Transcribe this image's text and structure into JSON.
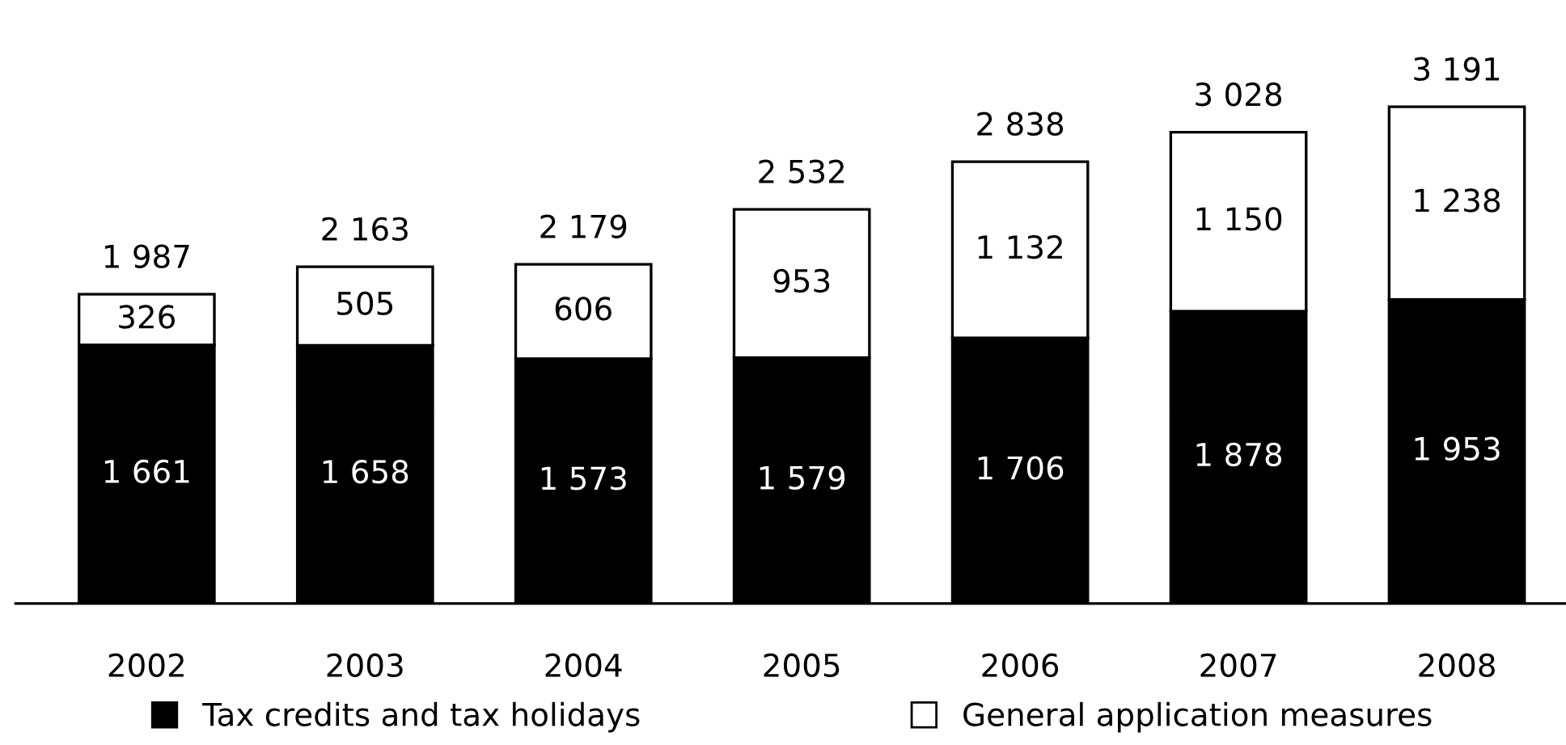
{
  "chart_data": {
    "type": "bar",
    "stacked": true,
    "categories": [
      "2002",
      "2003",
      "2004",
      "2005",
      "2006",
      "2007",
      "2008"
    ],
    "series": [
      {
        "name": "Tax credits and tax holidays",
        "color": "#000000",
        "values": [
          1661,
          1658,
          1573,
          1579,
          1706,
          1878,
          1953
        ],
        "value_labels": [
          "1 661",
          "1 658",
          "1 573",
          "1 579",
          "1 706",
          "1 878",
          "1 953"
        ]
      },
      {
        "name": "General application measures",
        "color": "#ffffff",
        "values": [
          326,
          505,
          606,
          953,
          1132,
          1150,
          1238
        ],
        "value_labels": [
          "326",
          "505",
          "606",
          "953",
          "1 132",
          "1 150",
          "1 238"
        ]
      }
    ],
    "totals": [
      "1 987",
      "2 163",
      "2 179",
      "2 532",
      "2 838",
      "3 028",
      "3 191"
    ],
    "tick_labels": "x",
    "grid": false,
    "legend": "bottom"
  }
}
